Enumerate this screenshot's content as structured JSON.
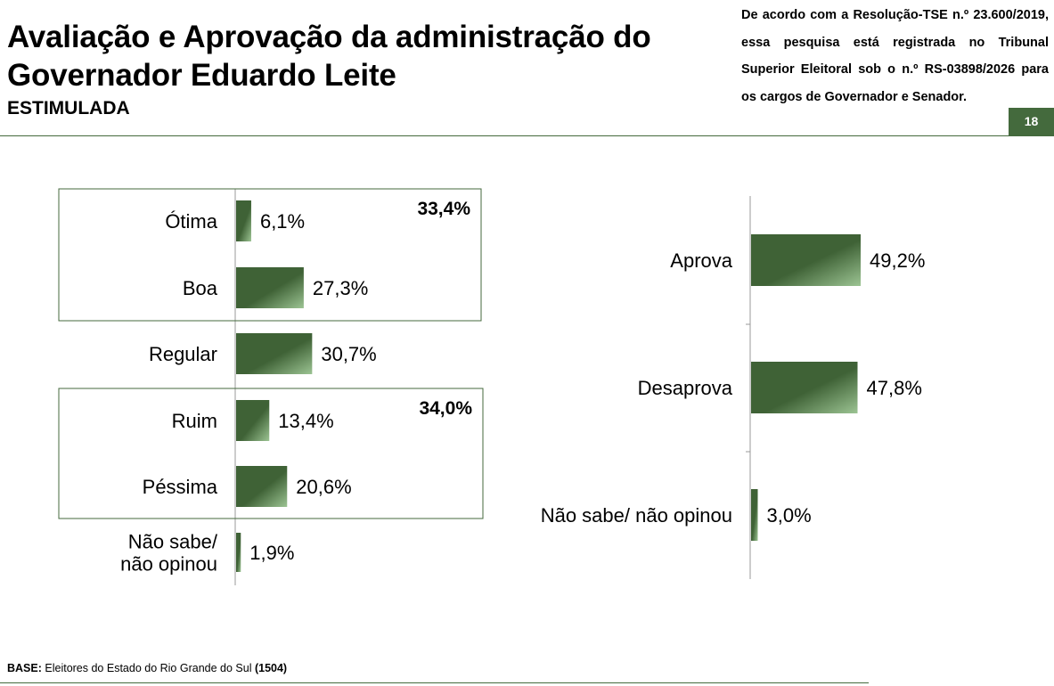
{
  "header": {
    "title": "Avaliação e Aprovação da administração do Governador Eduardo Leite",
    "subtitle": "ESTIMULADA",
    "notice": "De acordo com a Resolução-TSE n.º 23.600/2019, essa pesquisa está registrada no Tribunal Superior Eleitoral sob o n.º RS-03898/2026 para os cargos de Governador e Senador.",
    "page_number": "18"
  },
  "footer": {
    "base_label": "BASE:",
    "base_text": " Eleitores do Estado do Rio Grande do Sul ",
    "base_count": "(1504)"
  },
  "colors": {
    "bar_dark": "#3f6236",
    "bar_light": "#9cc493",
    "accent": "#446a3d",
    "box_border": "#446a3d"
  },
  "chart_data": [
    {
      "type": "bar",
      "orientation": "horizontal",
      "categories": [
        "Ótima",
        "Boa",
        "Regular",
        "Ruim",
        "Péssima",
        "Não sabe/ não opinou"
      ],
      "values": [
        6.1,
        27.3,
        30.7,
        13.4,
        20.6,
        1.9
      ],
      "value_labels": [
        "6,1%",
        "27,3%",
        "30,7%",
        "13,4%",
        "20,6%",
        "1,9%"
      ],
      "groups": [
        {
          "members": [
            "Ótima",
            "Boa"
          ],
          "total_label": "33,4%"
        },
        {
          "members": [
            "Ruim",
            "Péssima"
          ],
          "total_label": "34,0%"
        }
      ],
      "xlim": [
        0,
        100
      ]
    },
    {
      "type": "bar",
      "orientation": "horizontal",
      "categories": [
        "Aprova",
        "Desaprova",
        "Não sabe/ não opinou"
      ],
      "values": [
        49.2,
        47.8,
        3.0
      ],
      "value_labels": [
        "49,2%",
        "47,8%",
        "3,0%"
      ],
      "xlim": [
        0,
        100
      ]
    }
  ]
}
